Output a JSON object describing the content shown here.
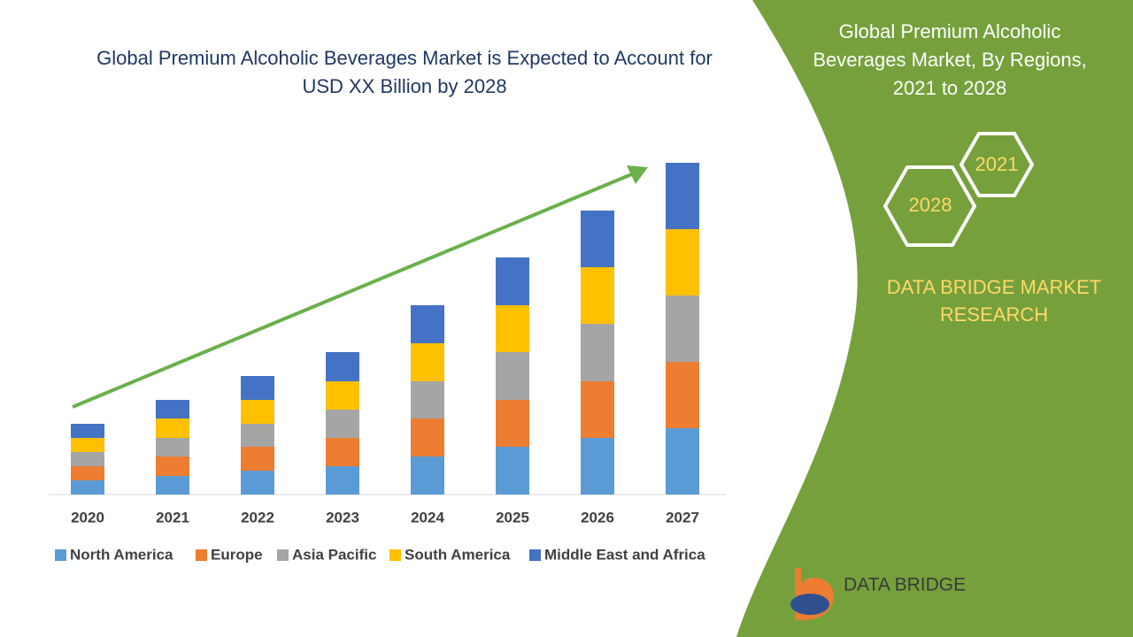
{
  "chart_data": {
    "type": "stacked_bar",
    "title": [
      "Global Premium Alcoholic Beverages Market is Expected to Account for",
      "USD XX Billion by 2028"
    ],
    "categories": [
      "2020",
      "2021",
      "2022",
      "2023",
      "2024",
      "2025",
      "2026",
      "2027"
    ],
    "series": [
      {
        "name": "North America",
        "color": "#5b9bd5",
        "values": [
          16,
          21,
          27,
          32,
          43,
          54,
          64,
          75
        ]
      },
      {
        "name": "Europe",
        "color": "#ed7d31",
        "values": [
          16,
          22,
          27,
          32,
          43,
          53,
          64,
          75
        ]
      },
      {
        "name": "Asia Pacific",
        "color": "#a5a5a5",
        "values": [
          16,
          21,
          26,
          32,
          42,
          54,
          65,
          75
        ]
      },
      {
        "name": "South America",
        "color": "#ffc000",
        "values": [
          16,
          22,
          27,
          32,
          43,
          53,
          64,
          75
        ]
      },
      {
        "name": "Middle East and Africa",
        "color": "#4472c4",
        "values": [
          16,
          21,
          27,
          33,
          43,
          54,
          64,
          75
        ]
      }
    ]
  },
  "side_panel": {
    "title": [
      "Global Premium Alcoholic",
      "Beverages Market, By Regions,",
      "2021 to 2028"
    ],
    "hexagons": [
      "2021",
      "2028"
    ],
    "brand": [
      "DATA BRIDGE MARKET",
      "RESEARCH"
    ]
  },
  "logo": {
    "text": "DATA BRIDGE"
  }
}
